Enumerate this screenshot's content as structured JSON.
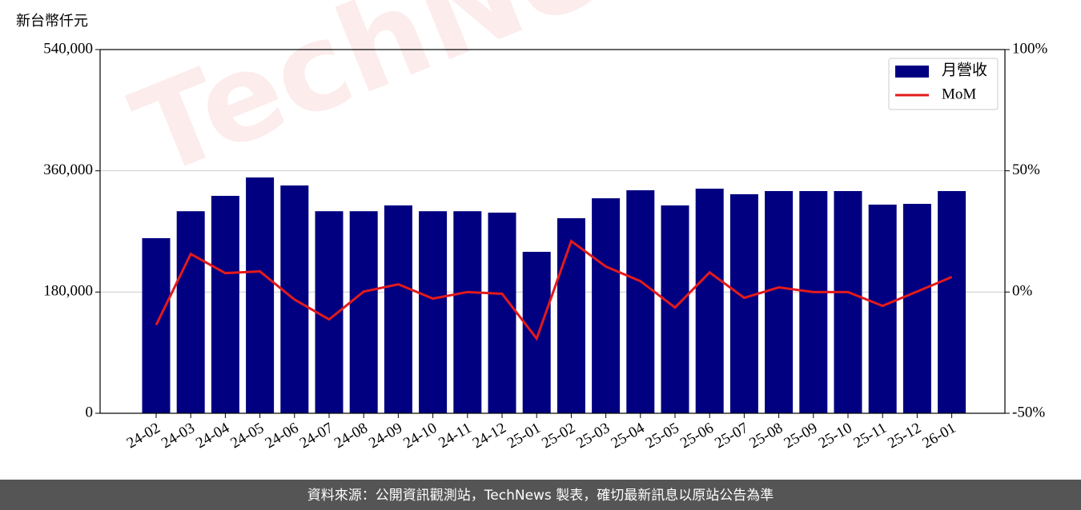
{
  "chart_data": {
    "type": "bar",
    "y_label": "新台幣仟元",
    "watermark": "TechNews",
    "source": "資料來源：公開資訊觀測站，TechNews 製表，確切最新訊息以原站公告為準",
    "categories": [
      "24-02",
      "24-03",
      "24-04",
      "24-05",
      "24-06",
      "24-07",
      "24-08",
      "24-09",
      "24-10",
      "24-11",
      "24-12",
      "25-01",
      "25-02",
      "25-03",
      "25-04",
      "25-05",
      "25-06",
      "25-07",
      "25-08",
      "25-09",
      "25-10",
      "25-11",
      "25-12",
      "26-01"
    ],
    "series": [
      {
        "name": "月營收",
        "type": "bar",
        "color": "#000080",
        "values": [
          260000,
          300000,
          322800,
          350100,
          338200,
          300000,
          300000,
          308600,
          300000,
          300000,
          297900,
          239700,
          289600,
          319200,
          331100,
          308600,
          333500,
          325200,
          329900,
          329900,
          329900,
          309800,
          310900,
          329900
        ]
      },
      {
        "name": "MoM",
        "type": "line",
        "color": "#e31a1c",
        "axis": "y2",
        "values": [
          -13.6,
          15.7,
          7.8,
          8.5,
          -3.1,
          -11.3,
          0.2,
          3.2,
          -2.7,
          0,
          -0.7,
          -19.2,
          21,
          10.5,
          4.5,
          -6.4,
          8.1,
          -2.4,
          1.9,
          0,
          0,
          -5.7,
          0.2,
          6.2
        ]
      }
    ],
    "ylim": [
      0,
      540000
    ],
    "yticks": [
      0,
      {
        "value": 180000,
        "label": "180,000"
      },
      {
        "value": 360000,
        "label": "360,000"
      },
      {
        "value": 540000,
        "label": "540,000"
      }
    ],
    "y2lim": [
      -50,
      100
    ],
    "y2ticks": [
      {
        "value": -50,
        "label": "-50%"
      },
      {
        "value": 0,
        "label": "0%"
      },
      {
        "value": 50,
        "label": "50%"
      },
      {
        "value": 100,
        "label": "100%"
      }
    ],
    "grid": true,
    "legend": "upper right"
  }
}
